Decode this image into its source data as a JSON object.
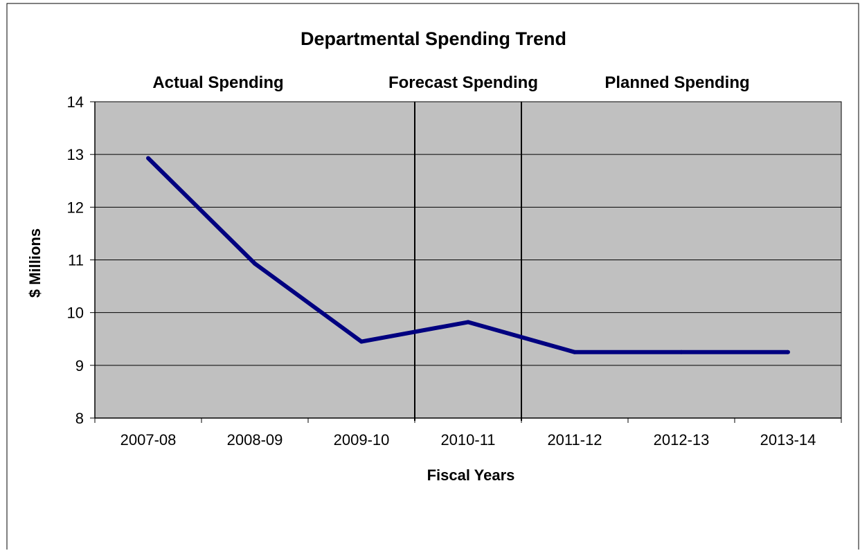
{
  "chart_data": {
    "type": "line",
    "title": "Departmental Spending Trend",
    "xlabel": "Fiscal Years",
    "ylabel": "$ Millions",
    "categories": [
      "2007-08",
      "2008-09",
      "2009-10",
      "2010-11",
      "2011-12",
      "2012-13",
      "2013-14"
    ],
    "series": [
      {
        "values": [
          12.93,
          10.93,
          9.45,
          9.82,
          9.25,
          9.25,
          9.25
        ]
      }
    ],
    "ylim": [
      8,
      14
    ],
    "yticks": [
      "8",
      "9",
      "10",
      "11",
      "12",
      "13",
      "14"
    ],
    "grid": true,
    "legend": "none",
    "period_labels": [
      "Actual Spending",
      "Forecast Spending",
      "Planned Spending"
    ],
    "period_boundaries_after_category": [
      2,
      3
    ],
    "colors": {
      "line": "#000080",
      "plot_background": "#c0c0c0",
      "grid": "#000000"
    }
  }
}
